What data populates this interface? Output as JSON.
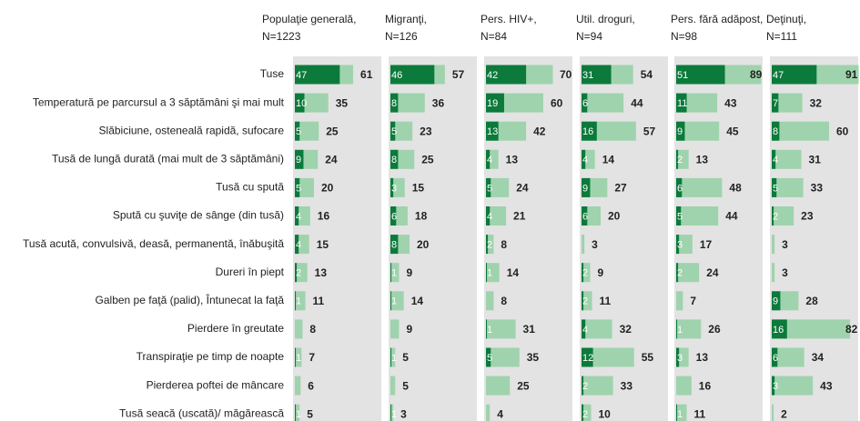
{
  "chart_data": {
    "type": "bar",
    "categories": [
      "Tuse",
      "Temperatură pe parcursul a 3 săptămâni şi mai mult",
      "Slăbiciune, osteneală rapidă, sufocare",
      "Tusă de lungă durată (mai mult de 3 săptămâni)",
      "Tusă cu spută",
      "Spută cu şuviţe de sânge (din tusă)",
      "Tusă acută, convulsivă, deasă, permanentă, înăbuşită",
      "Dureri în piept",
      "Galben pe faţă (palid), Întunecat la faţă",
      "Pierdere în greutate",
      "Transpiraţie pe timp de noapte",
      "Pierderea poftei de mâncare",
      "Tusă seacă (uscată)/ măgărească"
    ],
    "xlim": [
      0,
      100
    ],
    "inner_color": "#0b7a3b",
    "outer_color": "#9fd3ad",
    "panels": [
      {
        "title": "Populaţie generală,",
        "subtitle": "N=1223",
        "inner": [
          47,
          10,
          5,
          9,
          5,
          4,
          4,
          2,
          1,
          null,
          1,
          null,
          1
        ],
        "values": [
          61,
          35,
          25,
          24,
          20,
          16,
          15,
          13,
          11,
          8,
          7,
          6,
          5
        ]
      },
      {
        "title": "Migranţi,",
        "subtitle": "N=126",
        "inner": [
          46,
          8,
          5,
          8,
          3,
          6,
          8,
          1,
          1,
          null,
          1,
          null,
          1
        ],
        "values": [
          57,
          36,
          23,
          25,
          15,
          18,
          20,
          9,
          14,
          9,
          5,
          5,
          3
        ]
      },
      {
        "title": "Pers. HIV+,",
        "subtitle": "N=84",
        "inner": [
          42,
          19,
          13,
          4,
          5,
          4,
          2,
          1,
          null,
          1,
          5,
          null,
          null
        ],
        "values": [
          70,
          60,
          42,
          13,
          24,
          21,
          8,
          14,
          8,
          31,
          35,
          25,
          4
        ]
      },
      {
        "title": "Util. droguri,",
        "subtitle": "N=94",
        "inner": [
          31,
          6,
          16,
          4,
          9,
          6,
          null,
          2,
          2,
          4,
          12,
          2,
          2
        ],
        "values": [
          54,
          44,
          57,
          14,
          27,
          20,
          3,
          9,
          11,
          32,
          55,
          33,
          10
        ]
      },
      {
        "title": "Pers. fără adăpost,",
        "subtitle": "N=98",
        "inner": [
          51,
          11,
          9,
          2,
          6,
          5,
          3,
          2,
          null,
          1,
          3,
          null,
          1
        ],
        "values": [
          89,
          43,
          45,
          13,
          48,
          44,
          17,
          24,
          7,
          26,
          13,
          16,
          11
        ]
      },
      {
        "title": "Deţinuţi,",
        "subtitle": "N=111",
        "inner": [
          47,
          7,
          8,
          4,
          5,
          2,
          null,
          null,
          9,
          16,
          6,
          3,
          null
        ],
        "values": [
          91,
          32,
          60,
          31,
          33,
          23,
          3,
          3,
          28,
          82,
          34,
          43,
          2
        ]
      }
    ]
  }
}
